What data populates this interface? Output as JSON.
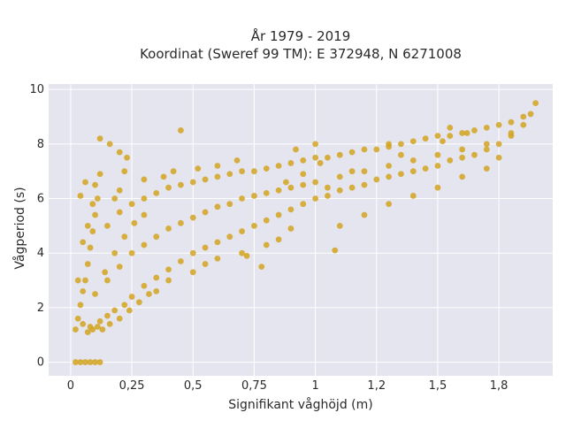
{
  "chart_data": {
    "type": "scatter",
    "title": [
      "År 1979 - 2019",
      "Koordinat (Sweref 99 TM): E 372948, N 6271008"
    ],
    "xlabel": "Signifikant våghöjd (m)",
    "ylabel": "Vågperiod (s)",
    "xlim": [
      -0.09,
      1.97
    ],
    "ylim": [
      -0.5,
      10.2
    ],
    "x_ticks": [
      {
        "value": 0,
        "label": "0"
      },
      {
        "value": 0.25,
        "label": "0,25"
      },
      {
        "value": 0.5,
        "label": "0,5"
      },
      {
        "value": 0.75,
        "label": "0,75"
      },
      {
        "value": 1,
        "label": "1"
      },
      {
        "value": 1.25,
        "label": "1,2"
      },
      {
        "value": 1.5,
        "label": "1,5"
      },
      {
        "value": 1.75,
        "label": "1,8"
      }
    ],
    "y_ticks": [
      {
        "value": 0,
        "label": "0"
      },
      {
        "value": 2,
        "label": "2"
      },
      {
        "value": 4,
        "label": "4"
      },
      {
        "value": 6,
        "label": "6"
      },
      {
        "value": 8,
        "label": "8"
      },
      {
        "value": 10,
        "label": "10"
      }
    ],
    "grid": true,
    "point_color": "#d4a421",
    "background_color": "#e5e5ef",
    "grid_color": "#ffffff",
    "points": [
      [
        0.02,
        0
      ],
      [
        0.04,
        0
      ],
      [
        0.06,
        0
      ],
      [
        0.08,
        0
      ],
      [
        0.1,
        0
      ],
      [
        0.12,
        0
      ],
      [
        0.02,
        1.2
      ],
      [
        0.03,
        1.6
      ],
      [
        0.04,
        2.1
      ],
      [
        0.05,
        2.6
      ],
      [
        0.06,
        3.0
      ],
      [
        0.07,
        3.6
      ],
      [
        0.08,
        4.2
      ],
      [
        0.09,
        4.8
      ],
      [
        0.1,
        5.4
      ],
      [
        0.11,
        6.0
      ],
      [
        0.1,
        6.5
      ],
      [
        0.12,
        6.9
      ],
      [
        0.08,
        1.3
      ],
      [
        0.12,
        1.5
      ],
      [
        0.15,
        1.7
      ],
      [
        0.18,
        1.9
      ],
      [
        0.22,
        2.1
      ],
      [
        0.25,
        2.4
      ],
      [
        0.3,
        2.8
      ],
      [
        0.35,
        3.1
      ],
      [
        0.4,
        3.4
      ],
      [
        0.45,
        3.7
      ],
      [
        0.5,
        4.0
      ],
      [
        0.55,
        4.2
      ],
      [
        0.6,
        4.4
      ],
      [
        0.65,
        4.6
      ],
      [
        0.7,
        4.8
      ],
      [
        0.75,
        5.0
      ],
      [
        0.8,
        5.2
      ],
      [
        0.85,
        5.4
      ],
      [
        0.9,
        5.6
      ],
      [
        0.95,
        5.8
      ],
      [
        1.0,
        6.0
      ],
      [
        1.05,
        6.1
      ],
      [
        1.1,
        6.3
      ],
      [
        1.15,
        6.4
      ],
      [
        1.2,
        6.5
      ],
      [
        1.25,
        6.7
      ],
      [
        1.3,
        6.8
      ],
      [
        1.35,
        6.9
      ],
      [
        1.4,
        7.0
      ],
      [
        1.45,
        7.1
      ],
      [
        1.5,
        7.2
      ],
      [
        1.55,
        7.4
      ],
      [
        1.6,
        7.5
      ],
      [
        1.65,
        7.6
      ],
      [
        1.7,
        7.8
      ],
      [
        1.75,
        8.0
      ],
      [
        1.8,
        8.3
      ],
      [
        1.85,
        8.7
      ],
      [
        1.88,
        9.1
      ],
      [
        1.9,
        9.5
      ],
      [
        0.15,
        5.0
      ],
      [
        0.2,
        5.5
      ],
      [
        0.25,
        5.8
      ],
      [
        0.3,
        6.0
      ],
      [
        0.35,
        6.2
      ],
      [
        0.4,
        6.4
      ],
      [
        0.45,
        6.5
      ],
      [
        0.5,
        6.6
      ],
      [
        0.55,
        6.7
      ],
      [
        0.6,
        6.8
      ],
      [
        0.65,
        6.9
      ],
      [
        0.7,
        7.0
      ],
      [
        0.75,
        7.0
      ],
      [
        0.8,
        7.1
      ],
      [
        0.85,
        7.2
      ],
      [
        0.9,
        7.3
      ],
      [
        0.95,
        7.4
      ],
      [
        1.0,
        7.5
      ],
      [
        1.05,
        7.5
      ],
      [
        1.1,
        7.6
      ],
      [
        1.15,
        7.7
      ],
      [
        1.2,
        7.8
      ],
      [
        1.25,
        7.8
      ],
      [
        1.3,
        7.9
      ],
      [
        1.35,
        8.0
      ],
      [
        1.4,
        8.1
      ],
      [
        1.45,
        8.2
      ],
      [
        1.5,
        8.3
      ],
      [
        1.55,
        8.3
      ],
      [
        1.6,
        8.4
      ],
      [
        1.65,
        8.5
      ],
      [
        1.7,
        8.6
      ],
      [
        1.75,
        8.7
      ],
      [
        1.8,
        8.8
      ],
      [
        1.85,
        9.0
      ],
      [
        0.15,
        3.0
      ],
      [
        0.2,
        3.5
      ],
      [
        0.25,
        4.0
      ],
      [
        0.3,
        4.3
      ],
      [
        0.35,
        4.6
      ],
      [
        0.4,
        4.9
      ],
      [
        0.45,
        5.1
      ],
      [
        0.5,
        5.3
      ],
      [
        0.55,
        5.5
      ],
      [
        0.6,
        5.7
      ],
      [
        0.65,
        5.8
      ],
      [
        0.7,
        6.0
      ],
      [
        0.75,
        6.1
      ],
      [
        0.8,
        6.2
      ],
      [
        0.85,
        6.3
      ],
      [
        0.9,
        6.4
      ],
      [
        0.95,
        6.5
      ],
      [
        1.0,
        6.6
      ],
      [
        1.1,
        6.8
      ],
      [
        1.2,
        7.0
      ],
      [
        1.3,
        7.2
      ],
      [
        1.4,
        7.4
      ],
      [
        1.5,
        7.6
      ],
      [
        1.6,
        7.8
      ],
      [
        1.7,
        8.0
      ],
      [
        1.8,
        8.4
      ],
      [
        0.1,
        2.5
      ],
      [
        0.14,
        3.3
      ],
      [
        0.18,
        4.0
      ],
      [
        0.22,
        4.6
      ],
      [
        0.26,
        5.1
      ],
      [
        0.3,
        5.4
      ],
      [
        0.18,
        6.0
      ],
      [
        0.2,
        6.3
      ],
      [
        0.22,
        7.0
      ],
      [
        0.3,
        6.7
      ],
      [
        0.38,
        6.8
      ],
      [
        0.42,
        7.0
      ],
      [
        0.12,
        8.2
      ],
      [
        0.16,
        8.0
      ],
      [
        0.2,
        7.7
      ],
      [
        0.45,
        8.5
      ],
      [
        0.23,
        7.5
      ],
      [
        0.35,
        2.6
      ],
      [
        0.4,
        3.0
      ],
      [
        0.5,
        3.3
      ],
      [
        0.55,
        3.6
      ],
      [
        0.6,
        3.8
      ],
      [
        0.7,
        4.0
      ],
      [
        0.8,
        4.3
      ],
      [
        0.85,
        4.5
      ],
      [
        0.9,
        4.9
      ],
      [
        0.78,
        3.5
      ],
      [
        0.72,
        3.9
      ],
      [
        1.08,
        4.1
      ],
      [
        1.1,
        5.0
      ],
      [
        1.2,
        5.4
      ],
      [
        1.3,
        5.8
      ],
      [
        1.4,
        6.1
      ],
      [
        1.5,
        6.4
      ],
      [
        1.6,
        6.8
      ],
      [
        1.7,
        7.1
      ],
      [
        1.75,
        7.5
      ],
      [
        1.55,
        8.6
      ],
      [
        1.62,
        8.4
      ],
      [
        1.52,
        8.1
      ],
      [
        1.3,
        8.0
      ],
      [
        1.35,
        7.6
      ],
      [
        1.15,
        7.0
      ],
      [
        1.05,
        6.4
      ],
      [
        0.95,
        6.9
      ],
      [
        0.88,
        6.6
      ],
      [
        0.92,
        7.8
      ],
      [
        1.0,
        8.0
      ],
      [
        1.02,
        7.3
      ],
      [
        0.68,
        7.4
      ],
      [
        0.6,
        7.2
      ],
      [
        0.52,
        7.1
      ],
      [
        0.05,
        1.4
      ],
      [
        0.07,
        1.1
      ],
      [
        0.09,
        1.2
      ],
      [
        0.11,
        1.3
      ],
      [
        0.13,
        1.2
      ],
      [
        0.16,
        1.4
      ],
      [
        0.2,
        1.6
      ],
      [
        0.24,
        1.9
      ],
      [
        0.28,
        2.2
      ],
      [
        0.32,
        2.5
      ],
      [
        0.03,
        3.0
      ],
      [
        0.05,
        4.4
      ],
      [
        0.07,
        5.0
      ],
      [
        0.09,
        5.8
      ],
      [
        0.04,
        6.1
      ],
      [
        0.06,
        6.6
      ]
    ]
  }
}
